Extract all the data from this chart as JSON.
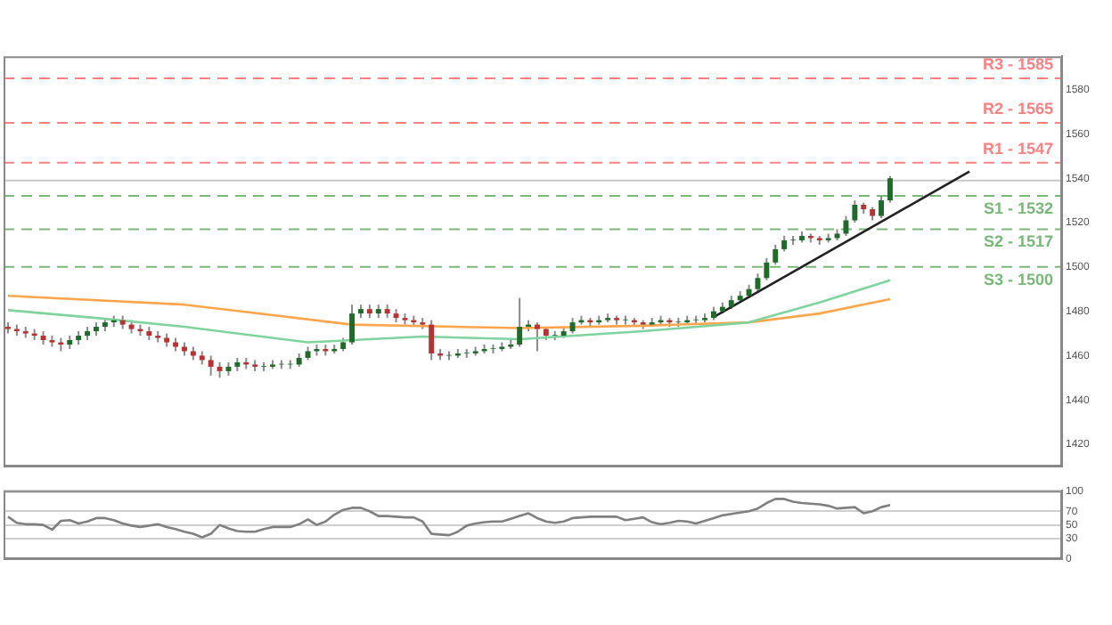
{
  "chart_data": [
    {
      "type": "candlestick",
      "tick_labels": "y",
      "marker": "none",
      "ylim": [
        1410,
        1595
      ],
      "yticks": [
        1420,
        1440,
        1460,
        1480,
        1500,
        1520,
        1540,
        1560,
        1580
      ],
      "categories": [
        null,
        null,
        null,
        null,
        null,
        null,
        null,
        null,
        null,
        null,
        null,
        null,
        null,
        null,
        null,
        null,
        null,
        null,
        null,
        null,
        null,
        null,
        null,
        null,
        null,
        null,
        null,
        null,
        null,
        null,
        null,
        null,
        null,
        null,
        null,
        null,
        null,
        null,
        null,
        null,
        null,
        null,
        null,
        null,
        null,
        null,
        null,
        null,
        null,
        null,
        null,
        null,
        null,
        null,
        null,
        null,
        null,
        null,
        null,
        null,
        null,
        null,
        null,
        null,
        null,
        null,
        null,
        null,
        null,
        null,
        null,
        null,
        null,
        null,
        null,
        null,
        null,
        null,
        null,
        null,
        null,
        null,
        null,
        null,
        null,
        null,
        null,
        null,
        null,
        null,
        null,
        null,
        null,
        null,
        null,
        null,
        null,
        null,
        null,
        null,
        null,
        null,
        null,
        null,
        null,
        null,
        null,
        null,
        null,
        null,
        null,
        null,
        null,
        null,
        null,
        null,
        null,
        null,
        null,
        null
      ],
      "ohlc": [
        [
          1473,
          1475,
          1470,
          1472
        ],
        [
          1472,
          1474,
          1469,
          1471
        ],
        [
          1471,
          1473,
          1468,
          1470
        ],
        [
          1470,
          1472,
          1467,
          1469
        ],
        [
          1469,
          1471,
          1465,
          1467
        ],
        [
          1467,
          1469,
          1464,
          1466
        ],
        [
          1466,
          1468,
          1462,
          1465
        ],
        [
          1465,
          1469,
          1463,
          1467
        ],
        [
          1467,
          1471,
          1465,
          1469
        ],
        [
          1469,
          1473,
          1467,
          1471
        ],
        [
          1471,
          1475,
          1469,
          1473
        ],
        [
          1473,
          1477,
          1471,
          1475
        ],
        [
          1475,
          1478,
          1473,
          1476
        ],
        [
          1476,
          1478,
          1472,
          1474
        ],
        [
          1474,
          1476,
          1470,
          1472
        ],
        [
          1472,
          1474,
          1469,
          1471
        ],
        [
          1471,
          1473,
          1467,
          1469
        ],
        [
          1469,
          1471,
          1466,
          1468
        ],
        [
          1468,
          1470,
          1464,
          1466
        ],
        [
          1466,
          1468,
          1462,
          1464
        ],
        [
          1464,
          1466,
          1460,
          1462
        ],
        [
          1462,
          1464,
          1458,
          1460
        ],
        [
          1460,
          1462,
          1456,
          1458
        ],
        [
          1458,
          1460,
          1451,
          1455
        ],
        [
          1455,
          1457,
          1450,
          1453
        ],
        [
          1453,
          1457,
          1451,
          1455
        ],
        [
          1455,
          1459,
          1453,
          1457
        ],
        [
          1457,
          1459,
          1454,
          1456
        ],
        [
          1456,
          1458,
          1453,
          1455
        ],
        [
          1455,
          1457,
          1453,
          1455
        ],
        [
          1455,
          1458,
          1454,
          1456
        ],
        [
          1456,
          1458,
          1454,
          1456
        ],
        [
          1456,
          1458,
          1454,
          1456
        ],
        [
          1456,
          1461,
          1455,
          1459
        ],
        [
          1459,
          1464,
          1458,
          1462
        ],
        [
          1462,
          1465,
          1460,
          1463
        ],
        [
          1463,
          1465,
          1460,
          1462
        ],
        [
          1462,
          1465,
          1461,
          1463
        ],
        [
          1463,
          1468,
          1462,
          1466
        ],
        [
          1466,
          1483,
          1465,
          1479
        ],
        [
          1479,
          1483,
          1477,
          1481
        ],
        [
          1481,
          1483,
          1477,
          1479
        ],
        [
          1479,
          1483,
          1477,
          1481
        ],
        [
          1481,
          1483,
          1477,
          1479
        ],
        [
          1479,
          1481,
          1475,
          1477
        ],
        [
          1477,
          1479,
          1474,
          1476
        ],
        [
          1476,
          1478,
          1473,
          1475
        ],
        [
          1475,
          1477,
          1472,
          1474
        ],
        [
          1474,
          1476,
          1458,
          1461
        ],
        [
          1461,
          1463,
          1458,
          1460
        ],
        [
          1460,
          1462,
          1458,
          1460
        ],
        [
          1460,
          1463,
          1459,
          1461
        ],
        [
          1461,
          1463,
          1459,
          1461
        ],
        [
          1461,
          1464,
          1460,
          1462
        ],
        [
          1462,
          1465,
          1461,
          1463
        ],
        [
          1463,
          1465,
          1461,
          1463
        ],
        [
          1463,
          1466,
          1462,
          1464
        ],
        [
          1464,
          1467,
          1463,
          1465
        ],
        [
          1465,
          1486,
          1464,
          1473
        ],
        [
          1473,
          1476,
          1471,
          1474
        ],
        [
          1474,
          1475,
          1462,
          1472
        ],
        [
          1472,
          1473,
          1467,
          1469
        ],
        [
          1469,
          1471,
          1467,
          1469
        ],
        [
          1469,
          1473,
          1468,
          1471
        ],
        [
          1471,
          1477,
          1470,
          1475
        ],
        [
          1475,
          1478,
          1474,
          1476
        ],
        [
          1476,
          1477,
          1473,
          1475
        ],
        [
          1475,
          1478,
          1474,
          1476
        ],
        [
          1476,
          1479,
          1475,
          1477
        ],
        [
          1477,
          1478,
          1474,
          1476
        ],
        [
          1476,
          1478,
          1474,
          1476
        ],
        [
          1476,
          1477,
          1473,
          1475
        ],
        [
          1475,
          1476,
          1472,
          1474
        ],
        [
          1474,
          1477,
          1473,
          1475
        ],
        [
          1475,
          1478,
          1474,
          1476
        ],
        [
          1476,
          1477,
          1473,
          1475
        ],
        [
          1475,
          1477,
          1473,
          1475
        ],
        [
          1475,
          1478,
          1474,
          1476
        ],
        [
          1476,
          1478,
          1474,
          1476
        ],
        [
          1476,
          1479,
          1475,
          1477
        ],
        [
          1477,
          1482,
          1476,
          1480
        ],
        [
          1480,
          1484,
          1479,
          1482
        ],
        [
          1482,
          1487,
          1481,
          1485
        ],
        [
          1485,
          1489,
          1484,
          1487
        ],
        [
          1487,
          1492,
          1486,
          1490
        ],
        [
          1490,
          1497,
          1489,
          1495
        ],
        [
          1495,
          1504,
          1494,
          1502
        ],
        [
          1502,
          1510,
          1501,
          1508
        ],
        [
          1508,
          1514,
          1507,
          1512
        ],
        [
          1512,
          1514,
          1510,
          1512
        ],
        [
          1512,
          1516,
          1511,
          1514
        ],
        [
          1514,
          1515,
          1511,
          1513
        ],
        [
          1513,
          1514,
          1510,
          1512
        ],
        [
          1512,
          1515,
          1511,
          1513
        ],
        [
          1513,
          1517,
          1512,
          1515
        ],
        [
          1515,
          1523,
          1514,
          1521
        ],
        [
          1521,
          1530,
          1520,
          1528
        ],
        [
          1528,
          1529,
          1524,
          1526
        ],
        [
          1526,
          1527,
          1521,
          1523
        ],
        [
          1523,
          1532,
          1522,
          1530
        ],
        [
          1530,
          1541,
          1529,
          1540
        ],
        null,
        null,
        null,
        null,
        null,
        null,
        null,
        null,
        null,
        null,
        null,
        null,
        null,
        null,
        null,
        null,
        null,
        null,
        null
      ],
      "series": [
        {
          "type": "line",
          "color": "#7fd39f",
          "values": [
            1480.5,
            null,
            null,
            null,
            null,
            null,
            null,
            null,
            null,
            null,
            1477,
            null,
            null,
            null,
            null,
            null,
            null,
            null,
            null,
            null,
            1473,
            null,
            null,
            null,
            null,
            null,
            null,
            null,
            null,
            null,
            null,
            null,
            null,
            null,
            1466,
            null,
            null,
            null,
            null,
            null,
            null,
            null,
            null,
            null,
            null,
            null,
            null,
            1468.6,
            null,
            null,
            null,
            null,
            null,
            null,
            null,
            null,
            null,
            null,
            1467.4,
            null,
            null,
            null,
            null,
            null,
            null,
            null,
            null,
            null,
            null,
            null,
            null,
            null,
            1471,
            null,
            null,
            null,
            null,
            null,
            null,
            null,
            null,
            null,
            null,
            null,
            1475,
            null,
            null,
            null,
            null,
            null,
            null,
            null,
            1484,
            null,
            null,
            null,
            null,
            null,
            null,
            null,
            1494,
            null,
            null,
            null,
            null,
            null,
            null,
            null,
            null,
            null,
            null,
            null,
            null,
            null,
            null,
            null,
            null,
            null,
            null,
            null
          ]
        },
        {
          "type": "line",
          "color": "#ffa64d",
          "values": [
            1487,
            null,
            null,
            null,
            null,
            null,
            null,
            null,
            null,
            null,
            null,
            null,
            null,
            null,
            null,
            null,
            null,
            null,
            null,
            null,
            1483,
            null,
            null,
            null,
            null,
            null,
            null,
            null,
            null,
            null,
            null,
            null,
            null,
            null,
            null,
            null,
            null,
            null,
            null,
            1474,
            null,
            null,
            null,
            null,
            null,
            null,
            null,
            null,
            null,
            null,
            null,
            null,
            null,
            null,
            null,
            null,
            null,
            null,
            1472.4,
            null,
            null,
            null,
            null,
            null,
            null,
            null,
            null,
            null,
            null,
            null,
            null,
            null,
            1473.5,
            null,
            null,
            null,
            null,
            null,
            null,
            null,
            null,
            null,
            null,
            null,
            1475,
            null,
            null,
            null,
            null,
            null,
            null,
            null,
            1479,
            null,
            null,
            null,
            null,
            null,
            null,
            null,
            1485.5,
            null,
            null,
            null,
            null,
            null,
            null,
            null,
            null,
            null,
            null,
            null,
            null,
            null,
            null,
            null,
            null,
            null,
            null,
            null
          ]
        },
        {
          "type": "line",
          "color": "#222222",
          "values": [
            null,
            null,
            null,
            null,
            null,
            null,
            null,
            null,
            null,
            null,
            null,
            null,
            null,
            null,
            null,
            null,
            null,
            null,
            null,
            null,
            null,
            null,
            null,
            null,
            null,
            null,
            null,
            null,
            null,
            null,
            null,
            null,
            null,
            null,
            null,
            null,
            null,
            null,
            null,
            null,
            null,
            null,
            null,
            null,
            null,
            null,
            null,
            null,
            null,
            null,
            null,
            null,
            null,
            null,
            null,
            null,
            null,
            null,
            null,
            null,
            null,
            null,
            null,
            null,
            null,
            null,
            null,
            null,
            null,
            null,
            null,
            null,
            null,
            null,
            null,
            null,
            null,
            null,
            null,
            null,
            1477.4,
            null,
            null,
            null,
            null,
            null,
            null,
            null,
            null,
            null,
            null,
            null,
            null,
            null,
            null,
            null,
            null,
            null,
            null,
            null,
            null,
            null,
            null,
            null,
            null,
            null,
            null,
            null,
            null,
            1543,
            null,
            null,
            null,
            null,
            null,
            null,
            null,
            null,
            null,
            null
          ]
        }
      ],
      "ref_lines": [
        {
          "axis": "y",
          "value": 1585,
          "label": "R3 - 1585",
          "color": "#ff8080",
          "line_style": "dashed"
        },
        {
          "axis": "y",
          "value": 1565,
          "label": "R2 - 1565",
          "color": "#ff8080",
          "line_style": "dashed"
        },
        {
          "axis": "y",
          "value": 1547,
          "label": "R1 - 1547",
          "color": "#ff8080",
          "line_style": "dashed"
        },
        {
          "axis": "y",
          "value": 1539,
          "color": "#c8c8c8",
          "line_style": "solid"
        },
        {
          "axis": "y",
          "value": 1532,
          "label": "S1 - 1532",
          "color": "#79b879",
          "line_style": "dashed"
        },
        {
          "axis": "y",
          "value": 1517,
          "label": "S2 - 1517",
          "color": "#79b879",
          "line_style": "dashed"
        },
        {
          "axis": "y",
          "value": 1500,
          "label": "S3 - 1500",
          "color": "#79b879",
          "line_style": "dashed"
        }
      ]
    },
    {
      "type": "line",
      "tick_labels": "y",
      "grid": "y",
      "marker": "none",
      "color": "#808080",
      "ylim": [
        0,
        100
      ],
      "yticks": [
        0,
        30,
        50,
        70,
        100
      ],
      "categories": [
        null,
        null,
        null,
        null,
        null,
        null,
        null,
        null,
        null,
        null,
        null,
        null,
        null,
        null,
        null,
        null,
        null,
        null,
        null,
        null,
        null,
        null,
        null,
        null,
        null,
        null,
        null,
        null,
        null,
        null,
        null,
        null,
        null,
        null,
        null,
        null,
        null,
        null,
        null,
        null,
        null,
        null,
        null,
        null,
        null,
        null,
        null,
        null,
        null,
        null,
        null,
        null,
        null,
        null,
        null,
        null,
        null,
        null,
        null,
        null,
        null,
        null,
        null,
        null,
        null,
        null,
        null,
        null,
        null,
        null,
        null,
        null,
        null,
        null,
        null,
        null,
        null,
        null,
        null,
        null,
        null,
        null,
        null,
        null,
        null,
        null,
        null,
        null,
        null,
        null,
        null,
        null,
        null,
        null,
        null,
        null,
        null,
        null,
        null,
        null,
        null,
        null,
        null,
        null,
        null,
        null,
        null,
        null,
        null,
        null,
        null,
        null,
        null,
        null,
        null,
        null,
        null,
        null,
        null,
        null
      ],
      "values": [
        62,
        53,
        51,
        51,
        50,
        43,
        56,
        57,
        52,
        55,
        60,
        60,
        57,
        52,
        49,
        47,
        49,
        51,
        47,
        44,
        40,
        37,
        32,
        37,
        50,
        45,
        41,
        40,
        40,
        44,
        47,
        47,
        47,
        51,
        58,
        50,
        55,
        65,
        72,
        75,
        75,
        70,
        63,
        63,
        62,
        61,
        61,
        55,
        37,
        36,
        35,
        40,
        49,
        52,
        54,
        55,
        55,
        59,
        63,
        67,
        60,
        55,
        53,
        55,
        60,
        61,
        62,
        62,
        62,
        62,
        57,
        59,
        61,
        54,
        51,
        53,
        56,
        55,
        52,
        56,
        60,
        64,
        66,
        68,
        70,
        74,
        82,
        88,
        88,
        84,
        82,
        81,
        80,
        78,
        74,
        75,
        76,
        67,
        70,
        76,
        79,
        null,
        null,
        null,
        null,
        null,
        null,
        null,
        null,
        null,
        null,
        null,
        null,
        null,
        null,
        null,
        null,
        null,
        null,
        null
      ]
    }
  ]
}
